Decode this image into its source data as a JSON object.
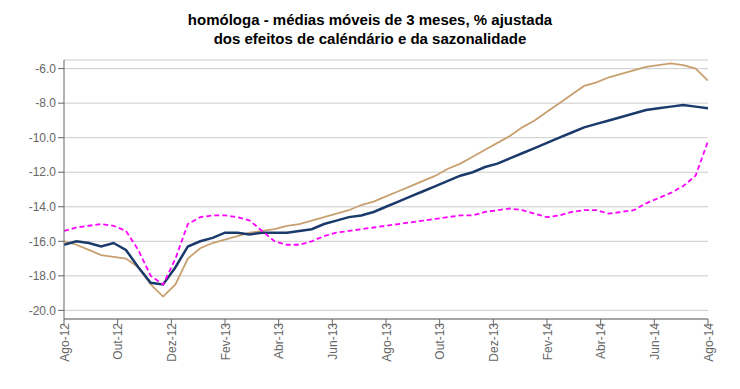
{
  "chart_data": {
    "type": "line",
    "title": "homóloga - médias móveis de 3 meses, % ajustada\ndos efeitos de caléndário  e da sazonalidade",
    "x": [
      0,
      0.4615,
      0.9231,
      1.3846,
      1.8462,
      2.3077,
      2.7692,
      3.2308,
      3.6923,
      4.1538,
      4.6154,
      5.0769,
      5.5385,
      6,
      6.4615,
      6.9231,
      7.3846,
      7.8462,
      8.3077,
      8.7692,
      9.2308,
      9.6923,
      10.1538,
      10.6154,
      11.0769,
      11.5385,
      12,
      12.4615,
      12.9231,
      13.3846,
      13.8462,
      14.3077,
      14.7692,
      15.2308,
      15.6923,
      16.1538,
      16.6154,
      17.0769,
      17.5385,
      18,
      18.4615,
      18.9231,
      19.3846,
      19.8462,
      20.3077,
      20.7692,
      21.2308,
      21.6923,
      22.1538,
      22.6154,
      23.0769,
      23.5385,
      24
    ],
    "xlim": [
      0,
      24
    ],
    "xticks": [
      {
        "value": 0,
        "label": "Ago-12"
      },
      {
        "value": 2,
        "label": "Out-12"
      },
      {
        "value": 4,
        "label": "Dez-12"
      },
      {
        "value": 6,
        "label": "Fev-13"
      },
      {
        "value": 8,
        "label": "Abr-13"
      },
      {
        "value": 10,
        "label": "Jun-13"
      },
      {
        "value": 12,
        "label": "Ago-13"
      },
      {
        "value": 14,
        "label": "Out-13"
      },
      {
        "value": 16,
        "label": "Dez-13"
      },
      {
        "value": 18,
        "label": "Fev-14"
      },
      {
        "value": 20,
        "label": "Abr-14"
      },
      {
        "value": 22,
        "label": "Jun-14"
      },
      {
        "value": 24,
        "label": "Ago-14"
      }
    ],
    "ylim": [
      -20.5,
      -5.5
    ],
    "yticks": [
      {
        "value": -20.0,
        "label": "-20.0"
      },
      {
        "value": -18.0,
        "label": "-18.0"
      },
      {
        "value": -16.0,
        "label": "-16.0"
      },
      {
        "value": -14.0,
        "label": "-14.0"
      },
      {
        "value": -12.0,
        "label": "-12.0"
      },
      {
        "value": -10.0,
        "label": "-10.0"
      },
      {
        "value": -8.0,
        "label": "-8.0"
      },
      {
        "value": -6.0,
        "label": "-6.0"
      }
    ],
    "grid": "y",
    "series": [
      {
        "color": "#c8a070",
        "line_style": "solid",
        "values": [
          -16.0,
          -16.2,
          -16.5,
          -16.8,
          -16.9,
          -17.0,
          -17.5,
          -18.5,
          -19.2,
          -18.5,
          -17.0,
          -16.4,
          -16.1,
          -15.9,
          -15.7,
          -15.5,
          -15.4,
          -15.3,
          -15.1,
          -15.0,
          -14.8,
          -14.6,
          -14.4,
          -14.2,
          -13.9,
          -13.7,
          -13.4,
          -13.1,
          -12.8,
          -12.5,
          -12.2,
          -11.8,
          -11.5,
          -11.1,
          -10.7,
          -10.3,
          -9.9,
          -9.4,
          -9.0,
          -8.5,
          -8.0,
          -7.5,
          -7.0,
          -6.8,
          -6.5,
          -6.3,
          -6.1,
          -5.9,
          -5.8,
          -5.7,
          -5.8,
          -6.0,
          -6.7
        ]
      },
      {
        "color": "#1a3a6b",
        "line_style": "solid",
        "values": [
          -16.2,
          -16.0,
          -16.1,
          -16.3,
          -16.1,
          -16.5,
          -17.5,
          -18.4,
          -18.5,
          -17.5,
          -16.3,
          -16.0,
          -15.8,
          -15.5,
          -15.5,
          -15.6,
          -15.5,
          -15.5,
          -15.5,
          -15.4,
          -15.3,
          -15.0,
          -14.8,
          -14.6,
          -14.5,
          -14.3,
          -14.0,
          -13.7,
          -13.4,
          -13.1,
          -12.8,
          -12.5,
          -12.2,
          -12.0,
          -11.7,
          -11.5,
          -11.2,
          -10.9,
          -10.6,
          -10.3,
          -10.0,
          -9.7,
          -9.4,
          -9.2,
          -9.0,
          -8.8,
          -8.6,
          -8.4,
          -8.3,
          -8.2,
          -8.1,
          -8.2,
          -8.3
        ]
      },
      {
        "color": "#ff00ff",
        "line_style": "dashed",
        "values": [
          -15.4,
          -15.2,
          -15.1,
          -15.0,
          -15.1,
          -15.4,
          -16.5,
          -18.0,
          -18.5,
          -17.0,
          -15.0,
          -14.6,
          -14.5,
          -14.5,
          -14.6,
          -14.8,
          -15.4,
          -16.0,
          -16.2,
          -16.2,
          -16.0,
          -15.7,
          -15.5,
          -15.4,
          -15.3,
          -15.2,
          -15.1,
          -15.0,
          -14.9,
          -14.8,
          -14.7,
          -14.6,
          -14.5,
          -14.5,
          -14.3,
          -14.2,
          -14.1,
          -14.2,
          -14.4,
          -14.6,
          -14.5,
          -14.3,
          -14.2,
          -14.2,
          -14.4,
          -14.3,
          -14.2,
          -13.8,
          -13.5,
          -13.2,
          -12.8,
          -12.2,
          -10.2
        ]
      }
    ]
  }
}
